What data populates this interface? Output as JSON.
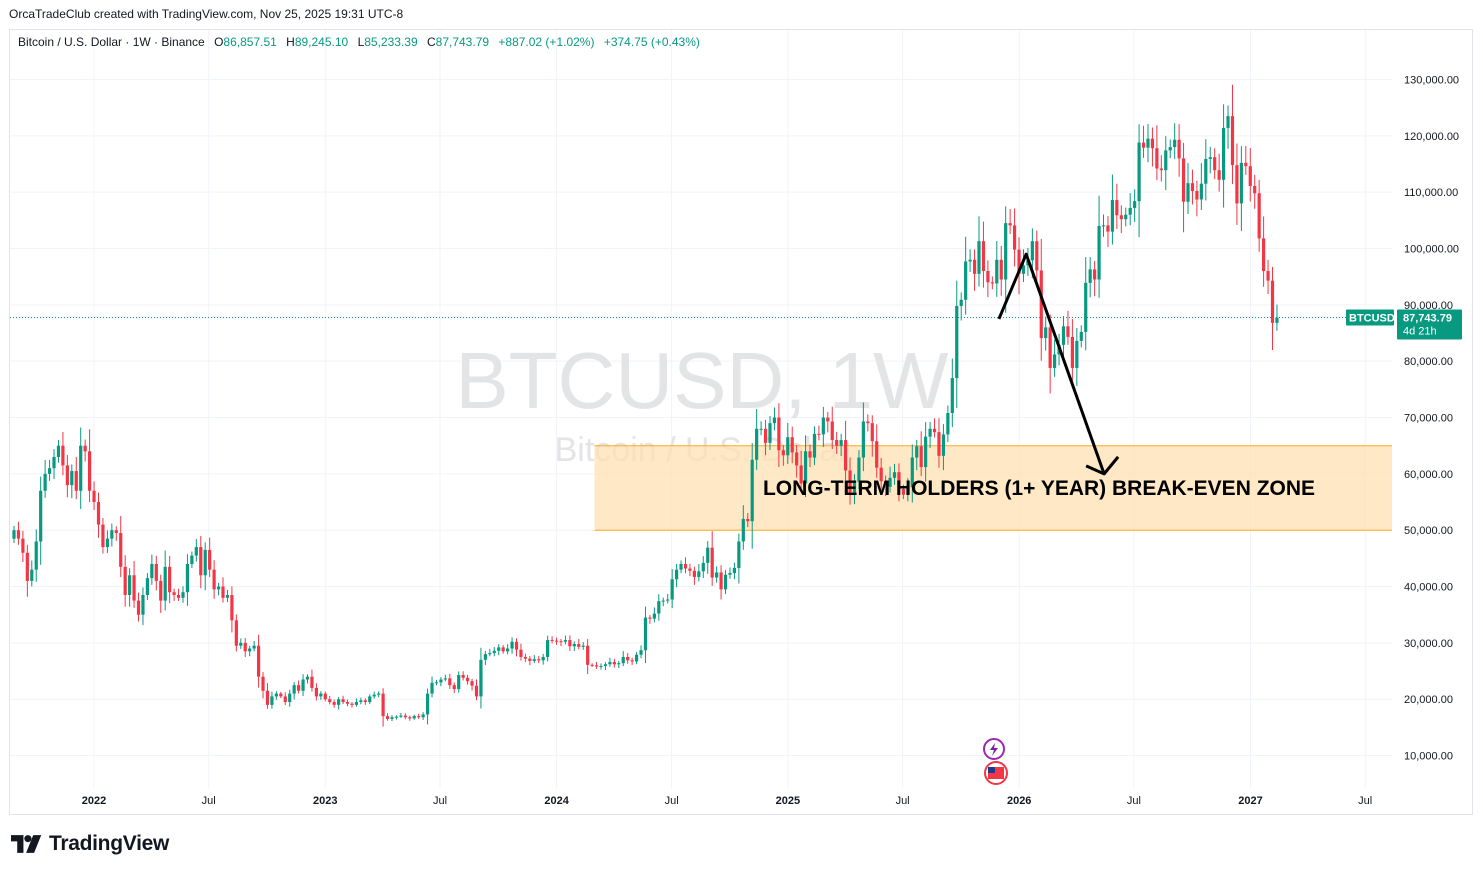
{
  "attribution": "OrcaTradeClub created with TradingView.com, Nov 25, 2025 19:31 UTC-8",
  "legend": {
    "symbol": "Bitcoin / U.S. Dollar · 1W · Binance",
    "open_label": "O",
    "open": "86,857.51",
    "high_label": "H",
    "high": "89,245.10",
    "low_label": "L",
    "low": "85,233.39",
    "close_label": "C",
    "close": "87,743.79",
    "change": "+887.02 (+1.02%)",
    "extra": "+374.75 (+0.43%)"
  },
  "watermark": {
    "title": "BTCUSD, 1W",
    "subtitle": "Bitcoin / U.S. Dollar"
  },
  "price_tag": {
    "ticker": "BTCUSD",
    "price": "87,743.79",
    "countdown": "4d 21h"
  },
  "footer": {
    "brand": "TradingView"
  },
  "colors": {
    "up": "#089981",
    "down": "#f23645",
    "zone_fill": "#ffe0b2",
    "zone_border": "#f9a825",
    "tag": "#089981"
  },
  "chart_data": {
    "type": "candlestick",
    "ylim": [
      2000,
      138000
    ],
    "y_ticks": [
      "10,000.00",
      "20,000.00",
      "30,000.00",
      "40,000.00",
      "50,000.00",
      "60,000.00",
      "70,000.00",
      "80,000.00",
      "90,000.00",
      "100,000.00",
      "110,000.00",
      "120,000.00",
      "130,000.00"
    ],
    "x_ticks": [
      "2022",
      "Jul",
      "2023",
      "Jul",
      "2024",
      "Jul",
      "2025",
      "Jul",
      "2026",
      "Jul",
      "2027",
      "Jul"
    ],
    "current_price": 87743.79,
    "zone": {
      "label": "LONG-TERM HOLDERS (1+ YEAR) BREAK-EVEN ZONE",
      "low": 50000,
      "high": 65000,
      "start": "2024-03"
    },
    "projection": [
      [
        "2025-11-30",
        87500
      ],
      [
        "2026-01-12",
        99000
      ],
      [
        "2026-05-15",
        60000
      ]
    ],
    "closes": [
      50000,
      48500,
      46000,
      41000,
      43000,
      48000,
      57000,
      60000,
      61000,
      63000,
      65000,
      61500,
      58000,
      60500,
      57000,
      65000,
      64000,
      57000,
      55000,
      51000,
      47000,
      48500,
      50000,
      49500,
      43500,
      38500,
      42000,
      37500,
      35000,
      38500,
      41500,
      44000,
      41000,
      37500,
      43500,
      39000,
      38500,
      38000,
      39000,
      44000,
      45500,
      47000,
      42000,
      46500,
      43000,
      39500,
      40000,
      38000,
      38500,
      34000,
      29500,
      30000,
      28500,
      29000,
      29500,
      24000,
      21500,
      19000,
      20500,
      21000,
      20500,
      19500,
      21000,
      22500,
      21500,
      23500,
      24000,
      22000,
      20500,
      21000,
      20000,
      19500,
      19000,
      20000,
      19500,
      19200,
      19000,
      19500,
      19800,
      19500,
      20500,
      20800,
      21000,
      17000,
      16500,
      16800,
      16900,
      17100,
      16800,
      16600,
      17000,
      16800,
      17300,
      21000,
      22900,
      23000,
      23500,
      23700,
      22500,
      21800,
      24300,
      23800,
      23200,
      22400,
      20500,
      27000,
      28000,
      28200,
      28600,
      29200,
      28500,
      29000,
      30200,
      28800,
      27500,
      27200,
      26800,
      27100,
      26900,
      27500,
      30500,
      30400,
      30300,
      30200,
      30500,
      29400,
      29800,
      29300,
      29500,
      26100,
      26000,
      25800,
      25900,
      26200,
      26600,
      26200,
      26400,
      27500,
      26900,
      26700,
      27900,
      28700,
      34500,
      34300,
      35200,
      37400,
      37500,
      37700,
      41300,
      43000,
      44000,
      43200,
      42800,
      41700,
      42700,
      44200,
      46900,
      41600,
      42500,
      39500,
      42100,
      42400,
      43300,
      48000,
      52000,
      51600,
      62500,
      68000,
      68000,
      65500,
      69000,
      70000,
      64200,
      63300,
      66500,
      63800,
      61500,
      58300,
      64000,
      62900,
      67100,
      67000,
      70000,
      69300,
      66000,
      65000,
      66000,
      60600,
      56500,
      58600,
      62900,
      69300,
      69000,
      65800,
      61100,
      58700,
      57700,
      59300,
      60300,
      57300,
      56300,
      57600,
      62900,
      64900,
      61200,
      66600,
      68000,
      67400,
      63200,
      67000,
      70800,
      77000,
      89800,
      90900,
      97700,
      98000,
      95500,
      101300,
      96000,
      94000,
      93800,
      98000,
      94500,
      104500,
      104100,
      99800,
      95500,
      97000,
      97900,
      101300,
      96100,
      84100,
      86000,
      78800,
      81200,
      82900,
      86200,
      84300,
      78800,
      83600,
      85200,
      93900,
      96300,
      94500,
      104000,
      104100,
      103000,
      108600,
      105900,
      105200,
      106000,
      107200,
      108400,
      118800,
      117900,
      119500,
      117800,
      114200,
      113900,
      117400,
      118000,
      119300,
      116000,
      108300,
      111600,
      110200,
      108700,
      111500,
      115900,
      116200,
      113900,
      112200,
      121400,
      123500,
      114800,
      108000,
      115200,
      114600,
      111100,
      109800,
      101800,
      96000,
      94300,
      86800,
      87743.79
    ]
  }
}
